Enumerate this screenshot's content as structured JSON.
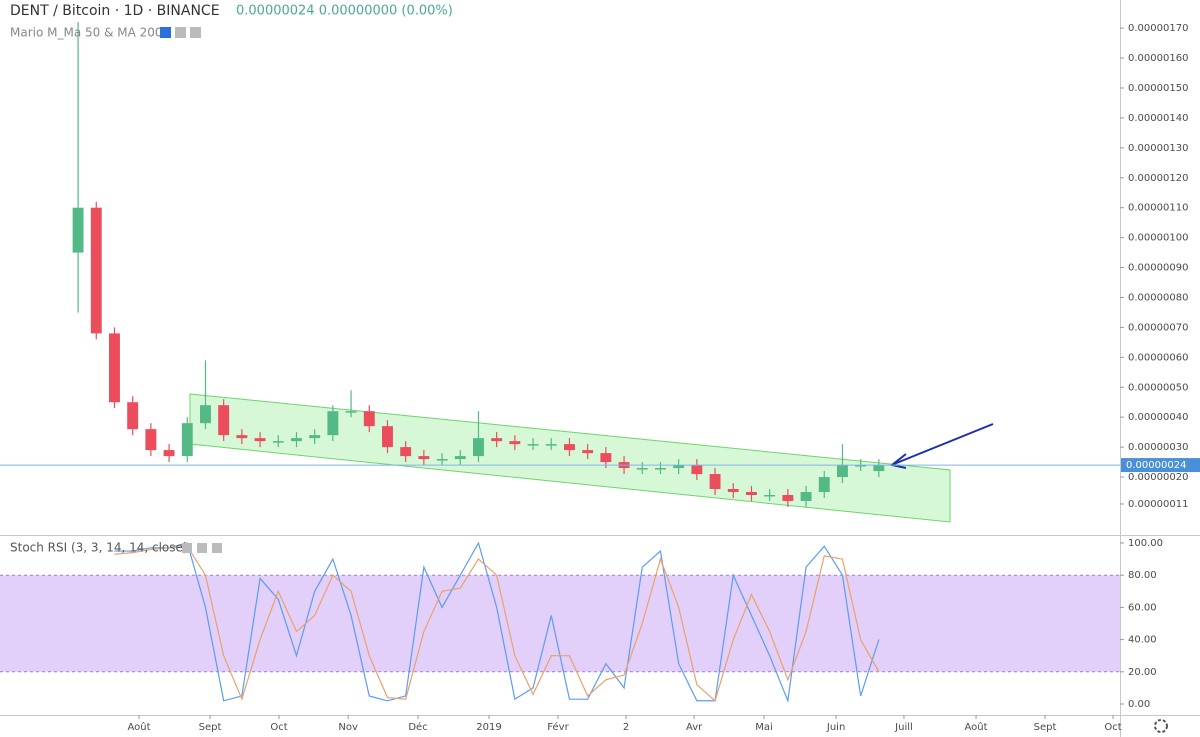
{
  "chart_data": [
    {
      "type": "candlestick",
      "title": "DENT / Bitcoin · 1D · BINANCE",
      "subtitle": "0.00000024  0.00000000 (0.00%)",
      "indicator": "Mario M_Ma 50 & MA 200",
      "categories": [
        null,
        null,
        null,
        null,
        null,
        null,
        null,
        null,
        null,
        null,
        null,
        null,
        null,
        null,
        null,
        null,
        null,
        null,
        null,
        null,
        null,
        null,
        null,
        null,
        null,
        null,
        null,
        null,
        null,
        null,
        null,
        null,
        null,
        null,
        null,
        null,
        null,
        null,
        null,
        null,
        null,
        null,
        null,
        null,
        null
      ],
      "open": [
        9.5e-07,
        1.1e-06,
        6.8e-07,
        4.5e-07,
        3.6e-07,
        2.9e-07,
        2.7e-07,
        3.8e-07,
        4.4e-07,
        3.4e-07,
        3.3e-07,
        3.2e-07,
        3.2e-07,
        3.3e-07,
        3.4e-07,
        4.2e-07,
        4.2e-07,
        3.7e-07,
        3e-07,
        2.7e-07,
        2.6e-07,
        2.6e-07,
        2.7e-07,
        3.3e-07,
        3.2e-07,
        3.1e-07,
        3.1e-07,
        3.1e-07,
        2.9e-07,
        2.8e-07,
        2.5e-07,
        2.3e-07,
        2.3e-07,
        2.3e-07,
        2.4e-07,
        2.1e-07,
        1.6e-07,
        1.5e-07,
        1.4e-07,
        1.4e-07,
        1.2e-07,
        1.5e-07,
        2e-07,
        2.4e-07,
        2.2e-07
      ],
      "high": [
        1.72e-06,
        1.12e-06,
        7e-07,
        4.7e-07,
        3.8e-07,
        3.1e-07,
        4e-07,
        5.9e-07,
        4.6e-07,
        3.6e-07,
        3.5e-07,
        3.4e-07,
        3.5e-07,
        3.6e-07,
        4.4e-07,
        4.9e-07,
        4.4e-07,
        3.9e-07,
        3.2e-07,
        2.9e-07,
        2.8e-07,
        2.9e-07,
        4.2e-07,
        3.5e-07,
        3.4e-07,
        3.3e-07,
        3.3e-07,
        3.3e-07,
        3.1e-07,
        3e-07,
        2.7e-07,
        2.5e-07,
        2.5e-07,
        2.6e-07,
        2.6e-07,
        2.3e-07,
        1.8e-07,
        1.7e-07,
        1.6e-07,
        1.6e-07,
        1.7e-07,
        2.2e-07,
        3.1e-07,
        2.6e-07,
        2.6e-07
      ],
      "low": [
        7.5e-07,
        6.6e-07,
        4.3e-07,
        3.4e-07,
        2.7e-07,
        2.5e-07,
        2.5e-07,
        3.6e-07,
        3.2e-07,
        3.1e-07,
        3e-07,
        3e-07,
        3e-07,
        3.1e-07,
        3.2e-07,
        4e-07,
        3.5e-07,
        2.8e-07,
        2.5e-07,
        2.4e-07,
        2.4e-07,
        2.4e-07,
        2.5e-07,
        3e-07,
        2.9e-07,
        2.9e-07,
        2.9e-07,
        2.7e-07,
        2.6e-07,
        2.3e-07,
        2.1e-07,
        2.1e-07,
        2.1e-07,
        2.1e-07,
        1.9e-07,
        1.4e-07,
        1.3e-07,
        1.2e-07,
        1.2e-07,
        1e-07,
        1e-07,
        1.3e-07,
        1.8e-07,
        2.2e-07,
        2e-07
      ],
      "close": [
        1.1e-06,
        6.8e-07,
        4.5e-07,
        3.6e-07,
        2.9e-07,
        2.7e-07,
        3.8e-07,
        4.4e-07,
        3.4e-07,
        3.3e-07,
        3.2e-07,
        3.2e-07,
        3.3e-07,
        3.4e-07,
        4.2e-07,
        4.2e-07,
        3.7e-07,
        3e-07,
        2.7e-07,
        2.6e-07,
        2.6e-07,
        2.7e-07,
        3.3e-07,
        3.2e-07,
        3.1e-07,
        3.1e-07,
        3.1e-07,
        2.9e-07,
        2.8e-07,
        2.5e-07,
        2.3e-07,
        2.3e-07,
        2.3e-07,
        2.4e-07,
        2.1e-07,
        1.6e-07,
        1.5e-07,
        1.4e-07,
        1.4e-07,
        1.2e-07,
        1.5e-07,
        2e-07,
        2.4e-07,
        2.4e-07,
        2.4e-07
      ],
      "up_color": "#53b987",
      "down_color": "#eb4d5c",
      "last_price": {
        "value": 2.4e-07,
        "label": "0.00000024"
      },
      "xlim": [
        -4.29,
        57.25
      ],
      "xticks": [
        {
          "value": 3.35,
          "label": "Août"
        },
        {
          "value": 7.25,
          "label": "Sept"
        },
        {
          "value": 11.04,
          "label": "Oct"
        },
        {
          "value": 14.84,
          "label": "Nov"
        },
        {
          "value": 18.68,
          "label": "Déc"
        },
        {
          "value": 22.58,
          "label": "2019"
        },
        {
          "value": 26.37,
          "label": "Févr"
        },
        {
          "value": 30.11,
          "label": "2"
        },
        {
          "value": 33.85,
          "label": "Avr"
        },
        {
          "value": 37.69,
          "label": "Mai"
        },
        {
          "value": 41.65,
          "label": "Juin"
        },
        {
          "value": 45.38,
          "label": "Juill"
        },
        {
          "value": 49.34,
          "label": "Août"
        },
        {
          "value": 53.13,
          "label": "Sept"
        },
        {
          "value": 56.87,
          "label": "Oct"
        }
      ],
      "ylim": [
        1.3e-08,
        1.794e-06
      ],
      "yticks": [
        {
          "value": 1.1e-07,
          "label": "0.00000011"
        },
        {
          "value": 2e-07,
          "label": "0.00000020"
        },
        {
          "value": 3e-07,
          "label": "0.00000030"
        },
        {
          "value": 4e-07,
          "label": "0.00000040"
        },
        {
          "value": 5e-07,
          "label": "0.00000050"
        },
        {
          "value": 6e-07,
          "label": "0.00000060"
        },
        {
          "value": 7e-07,
          "label": "0.00000070"
        },
        {
          "value": 8e-07,
          "label": "0.00000080"
        },
        {
          "value": 9e-07,
          "label": "0.00000090"
        },
        {
          "value": 1e-06,
          "label": "0.00000100"
        },
        {
          "value": 1.1e-06,
          "label": "0.00000110"
        },
        {
          "value": 1.2e-06,
          "label": "0.00000120"
        },
        {
          "value": 1.3e-06,
          "label": "0.00000130"
        },
        {
          "value": 1.4e-06,
          "label": "0.00000140"
        },
        {
          "value": 1.5e-06,
          "label": "0.00000150"
        },
        {
          "value": 1.6e-06,
          "label": "0.00000160"
        },
        {
          "value": 1.7e-06,
          "label": "0.00000170"
        }
      ]
    },
    {
      "type": "line",
      "title": "Stoch RSI (3, 3, 14, 14, close)",
      "series": [
        {
          "color": "#5b9cf6",
          "values": [
            null,
            null,
            95,
            95,
            97,
            97,
            100,
            60,
            2,
            5,
            78,
            65,
            30,
            70,
            90,
            55,
            5,
            2,
            5,
            85,
            60,
            80,
            100,
            60,
            3,
            10,
            55,
            3,
            3,
            25,
            10,
            85,
            95,
            25,
            2,
            2,
            80,
            55,
            30,
            2,
            85,
            98,
            80,
            5,
            40
          ]
        },
        {
          "color": "#e8a26a",
          "values": [
            null,
            null,
            93,
            94,
            96,
            97,
            98,
            80,
            30,
            3,
            40,
            70,
            45,
            55,
            80,
            70,
            30,
            4,
            3,
            45,
            70,
            72,
            90,
            80,
            30,
            6,
            30,
            30,
            5,
            15,
            18,
            50,
            90,
            60,
            12,
            2,
            40,
            68,
            45,
            15,
            45,
            92,
            90,
            40,
            20
          ]
        }
      ],
      "overbought": 80,
      "oversold": 20,
      "band_color": "#e2cffa",
      "ylim": [
        -6.83,
        103.1
      ],
      "yticks": [
        {
          "value": 0,
          "label": "0.00"
        },
        {
          "value": 20,
          "label": "20.00"
        },
        {
          "value": 40,
          "label": "40.00"
        },
        {
          "value": 60,
          "label": "60.00"
        },
        {
          "value": 80,
          "label": "80.00"
        },
        {
          "value": 100,
          "label": "100.00"
        }
      ]
    }
  ]
}
